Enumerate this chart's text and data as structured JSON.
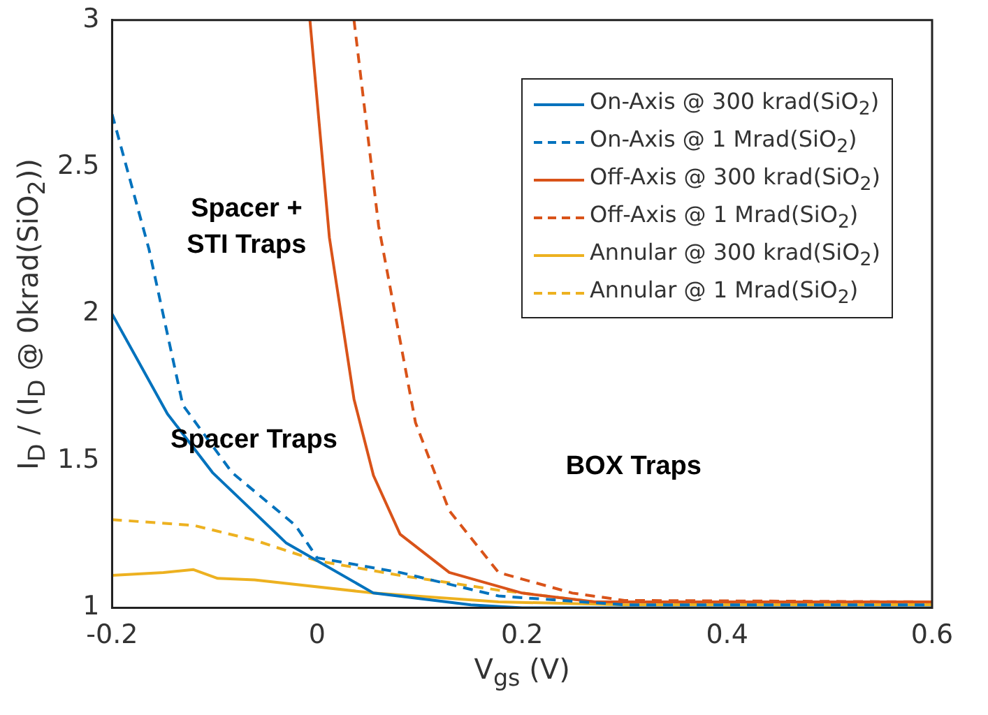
{
  "chart_data": {
    "type": "line",
    "xlabel": "V$_{gs}$ (V)",
    "ylabel": "I$_{D}$ / (I$_{D}$ @ 0krad(SiO$_{2}$))",
    "xlim": [
      -0.2,
      0.6
    ],
    "xticks": [
      -0.2,
      0,
      0.2,
      0.4,
      0.6
    ],
    "ylim": [
      1,
      3
    ],
    "yticks": [
      1,
      1.5,
      2,
      2.5,
      3
    ],
    "grid": false,
    "legend": "top right",
    "marker": "none",
    "series": [
      {
        "name": "On-Axis @ 300 krad(SiO$_{2}$)",
        "color": "#0072bd",
        "line_style": "solid",
        "x": [
          -0.2,
          -0.146,
          -0.102,
          -0.03,
          0.055,
          0.15,
          0.2,
          0.6
        ],
        "values": [
          2.0,
          1.66,
          1.46,
          1.22,
          1.05,
          1.01,
          1.0,
          1.0
        ]
      },
      {
        "name": "On-Axis @ 1 Mrad(SiO$_{2}$)",
        "color": "#0072bd",
        "line_style": "dashed",
        "x": [
          -0.2,
          -0.164,
          -0.131,
          -0.083,
          -0.021,
          0.0,
          0.081,
          0.177,
          0.3,
          0.6
        ],
        "values": [
          2.68,
          2.22,
          1.69,
          1.46,
          1.28,
          1.17,
          1.12,
          1.04,
          1.01,
          1.01
        ]
      },
      {
        "name": "Off-Axis @ 300 krad(SiO$_{2}$)",
        "color": "#d95319",
        "line_style": "solid",
        "x": [
          -0.007,
          0.012,
          0.036,
          0.055,
          0.081,
          0.129,
          0.2,
          0.271,
          0.6
        ],
        "values": [
          3.0,
          2.26,
          1.71,
          1.45,
          1.25,
          1.12,
          1.05,
          1.02,
          1.02
        ]
      },
      {
        "name": "Off-Axis @ 1 Mrad(SiO$_{2}$)",
        "color": "#d95319",
        "line_style": "dashed",
        "x": [
          0.036,
          0.06,
          0.096,
          0.129,
          0.177,
          0.249,
          0.3,
          0.6
        ],
        "values": [
          3.0,
          2.3,
          1.63,
          1.33,
          1.12,
          1.05,
          1.025,
          1.02
        ]
      },
      {
        "name": "Annular @ 300 krad(SiO$_{2}$)",
        "color": "#edb120",
        "line_style": "solid",
        "x": [
          -0.2,
          -0.15,
          -0.121,
          -0.097,
          -0.061,
          0.055,
          0.177,
          0.3,
          0.6
        ],
        "values": [
          1.11,
          1.12,
          1.13,
          1.1,
          1.095,
          1.05,
          1.02,
          1.01,
          1.01
        ]
      },
      {
        "name": "Annular @ 1 Mrad(SiO$_{2}$)",
        "color": "#edb120",
        "line_style": "dashed",
        "x": [
          -0.2,
          -0.12,
          -0.061,
          0.0,
          0.081,
          0.177,
          0.27,
          0.6
        ],
        "values": [
          1.3,
          1.28,
          1.23,
          1.16,
          1.11,
          1.06,
          1.02,
          1.01
        ]
      }
    ],
    "annotations": [
      "Spacer +\nSTI Traps",
      "Spacer Traps",
      "BOX Traps"
    ]
  }
}
